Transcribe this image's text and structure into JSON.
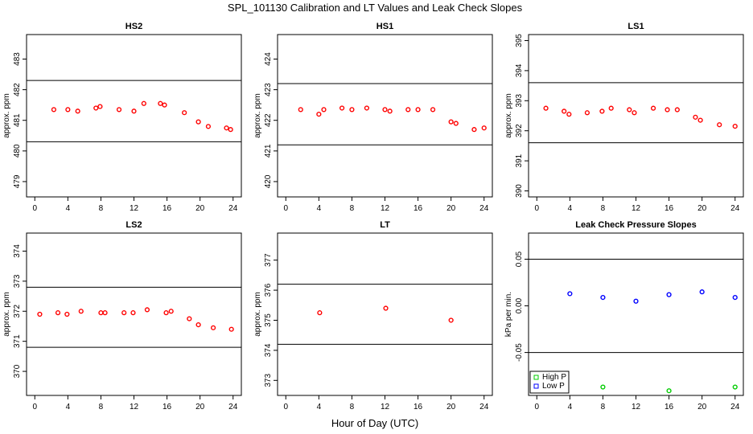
{
  "figure": {
    "title": "SPL_101130  Calibration and LT Values and Leak Check Slopes",
    "xlabel": "Hour of Day (UTC)"
  },
  "chart_data": [
    {
      "type": "scatter",
      "title": "HS2",
      "ylabel": "approx. ppm",
      "xlim": [
        -1,
        25
      ],
      "ylim": [
        478.5,
        483.8
      ],
      "xticks": [
        0,
        4,
        8,
        12,
        16,
        20,
        24
      ],
      "yticks": [
        479,
        480,
        481,
        482,
        483
      ],
      "hlines": [
        482.3,
        480.3
      ],
      "series": [
        {
          "color": "#ff0000",
          "x": [
            2.3,
            4,
            5.2,
            7.4,
            7.9,
            10.2,
            12,
            13.2,
            15.2,
            15.7,
            18.1,
            19.8,
            21,
            23.2,
            23.7
          ],
          "y": [
            481.35,
            481.35,
            481.3,
            481.4,
            481.45,
            481.35,
            481.3,
            481.55,
            481.55,
            481.5,
            481.25,
            480.95,
            480.8,
            480.75,
            480.7
          ]
        }
      ]
    },
    {
      "type": "scatter",
      "title": "HS1",
      "ylabel": "approx. ppm",
      "xlim": [
        -1,
        25
      ],
      "ylim": [
        419.5,
        424.8
      ],
      "xticks": [
        0,
        4,
        8,
        12,
        16,
        20,
        24
      ],
      "yticks": [
        420,
        421,
        422,
        423,
        424
      ],
      "hlines": [
        423.2,
        421.2
      ],
      "series": [
        {
          "color": "#ff0000",
          "x": [
            1.8,
            4,
            4.6,
            6.8,
            8,
            9.8,
            12,
            12.6,
            14.8,
            16,
            17.8,
            20,
            20.6,
            22.8,
            24
          ],
          "y": [
            422.35,
            422.2,
            422.35,
            422.4,
            422.35,
            422.4,
            422.35,
            422.3,
            422.35,
            422.35,
            422.35,
            421.95,
            421.9,
            421.7,
            421.75
          ]
        }
      ]
    },
    {
      "type": "scatter",
      "title": "LS1",
      "ylabel": "approx. ppm",
      "xlim": [
        -1,
        25
      ],
      "ylim": [
        389.8,
        395.2
      ],
      "xticks": [
        0,
        4,
        8,
        12,
        16,
        20,
        24
      ],
      "yticks": [
        390,
        391,
        392,
        393,
        394,
        395
      ],
      "hlines": [
        393.6,
        391.6
      ],
      "series": [
        {
          "color": "#ff0000",
          "x": [
            1.1,
            3.3,
            3.9,
            6.1,
            7.9,
            9,
            11.2,
            11.8,
            14.1,
            15.8,
            17,
            19.2,
            19.8,
            22.1,
            24
          ],
          "y": [
            392.75,
            392.65,
            392.55,
            392.6,
            392.65,
            392.75,
            392.7,
            392.6,
            392.75,
            392.7,
            392.7,
            392.45,
            392.35,
            392.2,
            392.15
          ]
        }
      ]
    },
    {
      "type": "scatter",
      "title": "LS2",
      "ylabel": "approx. ppm",
      "xlim": [
        -1,
        25
      ],
      "ylim": [
        369.2,
        374.6
      ],
      "xticks": [
        0,
        4,
        8,
        12,
        16,
        20,
        24
      ],
      "yticks": [
        370,
        371,
        372,
        373,
        374
      ],
      "hlines": [
        372.8,
        370.8
      ],
      "series": [
        {
          "color": "#ff0000",
          "x": [
            0.6,
            2.8,
            3.9,
            5.6,
            8,
            8.5,
            10.8,
            11.9,
            13.6,
            15.9,
            16.5,
            18.7,
            19.8,
            21.6,
            23.8
          ],
          "y": [
            371.9,
            371.95,
            371.9,
            372.0,
            371.95,
            371.95,
            371.95,
            371.95,
            372.05,
            371.95,
            372.0,
            371.75,
            371.55,
            371.45,
            371.4
          ]
        }
      ]
    },
    {
      "type": "scatter",
      "title": "LT",
      "ylabel": "approx. ppm",
      "xlim": [
        -1,
        25
      ],
      "ylim": [
        372.5,
        377.9
      ],
      "xticks": [
        0,
        4,
        8,
        12,
        16,
        20,
        24
      ],
      "yticks": [
        373,
        374,
        375,
        376,
        377
      ],
      "hlines": [
        376.2,
        374.2
      ],
      "series": [
        {
          "color": "#ff0000",
          "x": [
            4.1,
            12.1,
            20
          ],
          "y": [
            375.25,
            375.4,
            375.0
          ]
        }
      ]
    },
    {
      "type": "scatter",
      "title": "Leak Check Pressure Slopes",
      "ylabel": "kPa per min.",
      "xlim": [
        -1,
        25
      ],
      "ylim": [
        -0.096,
        0.078
      ],
      "xticks": [
        0,
        4,
        8,
        12,
        16,
        20,
        24
      ],
      "yticks": [
        -0.05,
        0.0,
        0.05
      ],
      "ytick_labels": [
        "-0.05",
        "0.00",
        "0.05"
      ],
      "hlines": [
        0.05,
        -0.05
      ],
      "legend": {
        "position": "bottom-left"
      },
      "series": [
        {
          "name": "High P",
          "color": "#00cc00",
          "x": [
            8,
            16,
            24
          ],
          "y": [
            -0.087,
            -0.091,
            -0.087
          ]
        },
        {
          "name": "Low P",
          "color": "#0000ff",
          "x": [
            4,
            8,
            12,
            16,
            20,
            24
          ],
          "y": [
            0.013,
            0.009,
            0.005,
            0.012,
            0.015,
            0.009
          ]
        }
      ]
    }
  ]
}
